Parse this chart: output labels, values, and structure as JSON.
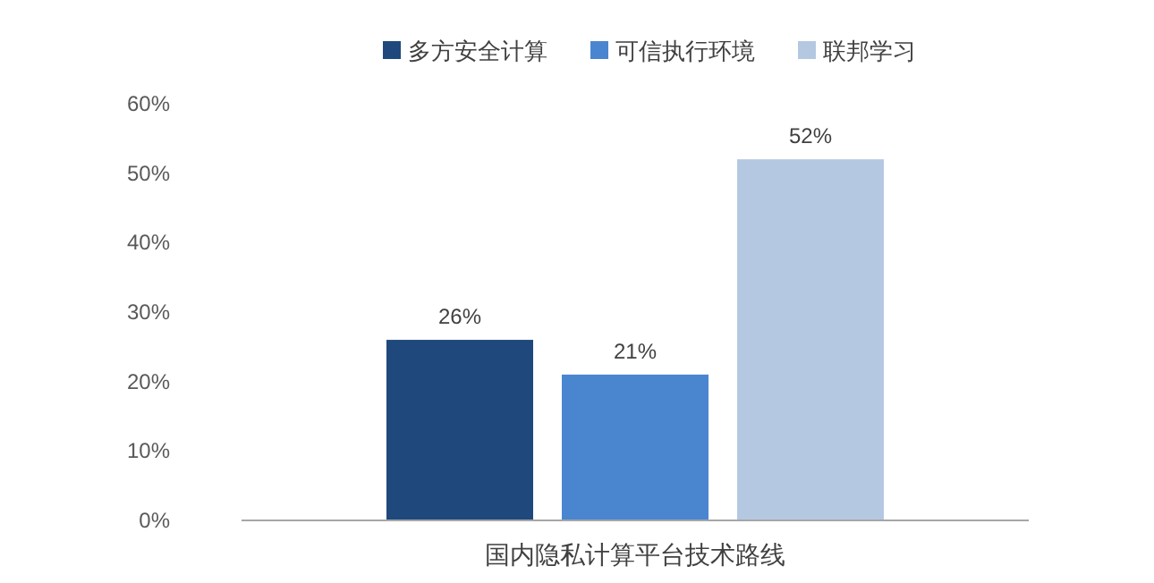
{
  "chart_data": {
    "type": "bar",
    "categories": [
      "国内隐私计算平台技术路线"
    ],
    "series": [
      {
        "name": "多方安全计算",
        "color": "#1f497d",
        "values": [
          26
        ],
        "value_labels": [
          "26%"
        ]
      },
      {
        "name": "可信执行环境",
        "color": "#4a86d0",
        "values": [
          21
        ],
        "value_labels": [
          "21%"
        ]
      },
      {
        "name": "联邦学习",
        "color": "#b5c8e2",
        "values": [
          52
        ],
        "value_labels": [
          "52%"
        ]
      }
    ],
    "ylim": [
      0,
      60
    ],
    "yticks": [
      {
        "value": 0,
        "label": "0%"
      },
      {
        "value": 10,
        "label": "10%"
      },
      {
        "value": 20,
        "label": "20%"
      },
      {
        "value": 30,
        "label": "30%"
      },
      {
        "value": 40,
        "label": "40%"
      },
      {
        "value": 50,
        "label": "50%"
      },
      {
        "value": 60,
        "label": "60%"
      }
    ],
    "legend": "top"
  }
}
